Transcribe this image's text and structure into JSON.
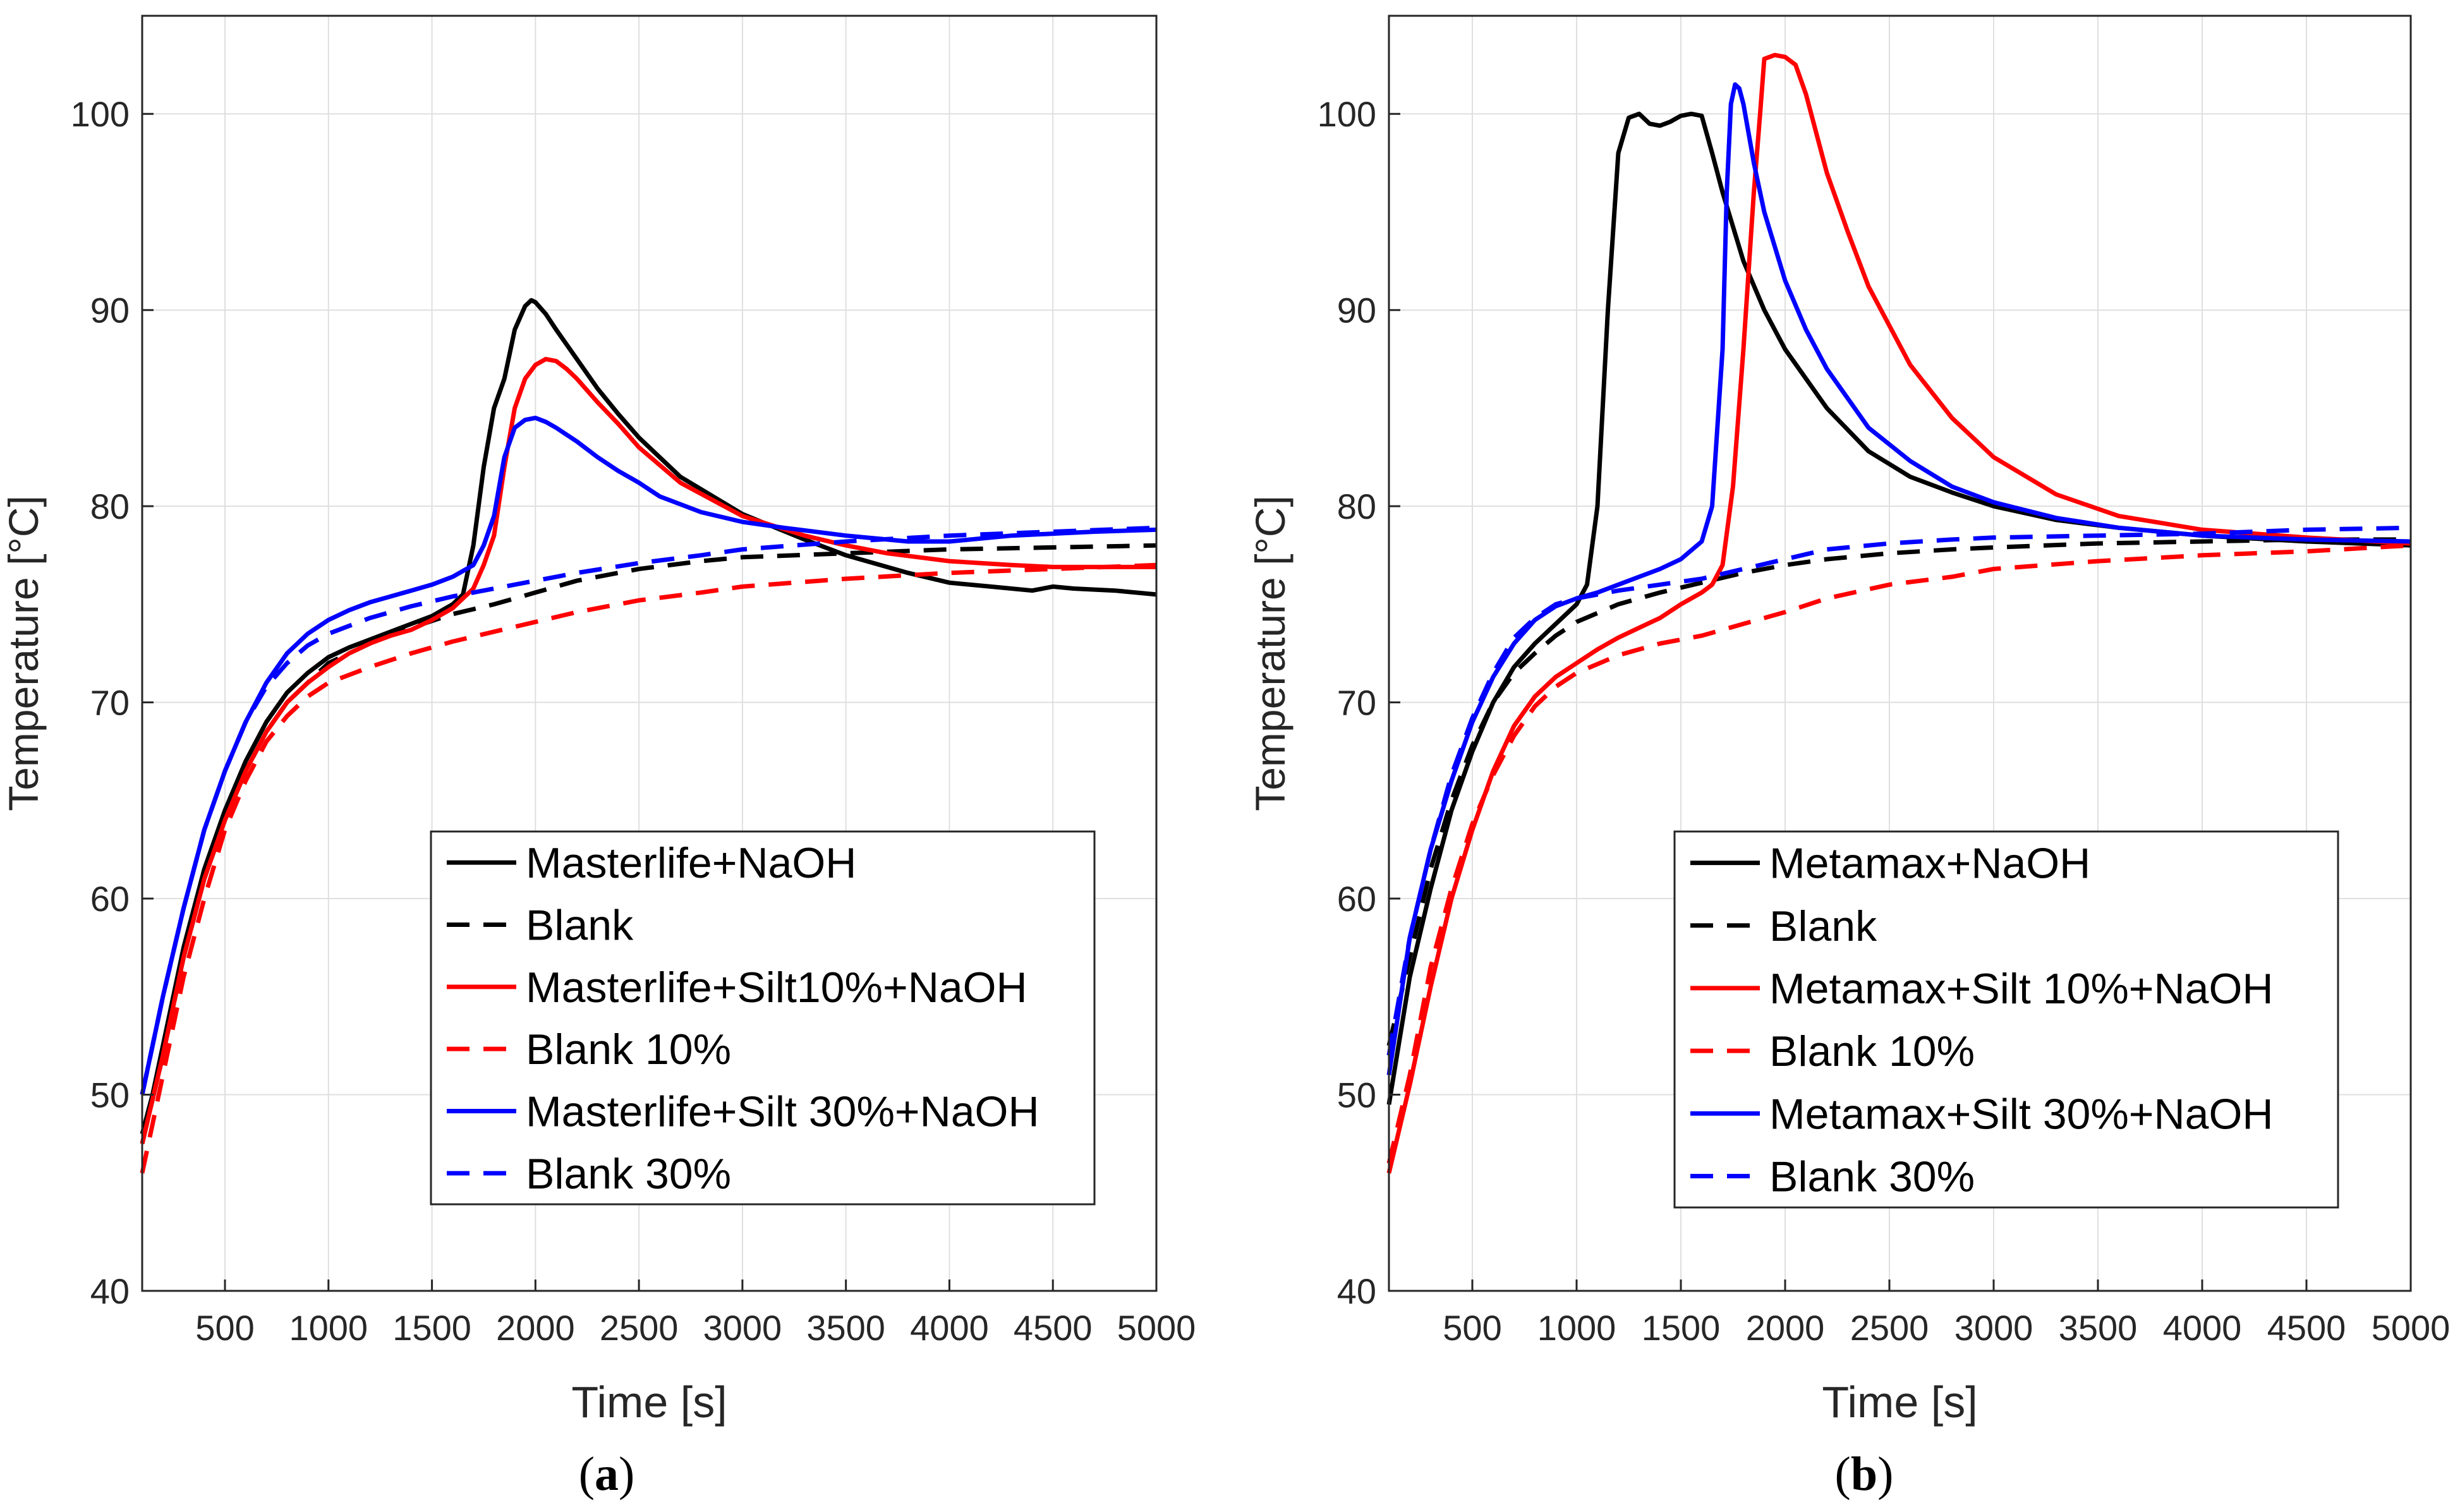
{
  "chart_data": [
    {
      "panel": "a",
      "caption_letter": "a",
      "type": "line",
      "title": "",
      "xlabel": "Time [s]",
      "ylabel": "Temperature [°C]",
      "xlim": [
        100,
        5000
      ],
      "ylim": [
        40,
        105
      ],
      "xticks": [
        500,
        1000,
        1500,
        2000,
        2500,
        3000,
        3500,
        4000,
        4500,
        5000
      ],
      "yticks": [
        40,
        50,
        60,
        70,
        80,
        90,
        100
      ],
      "grid": true,
      "legend_position": "bottom-right",
      "series": [
        {
          "name": "Masterlife+NaOH",
          "color": "#000000",
          "dash": "solid",
          "x": [
            100,
            150,
            200,
            300,
            400,
            500,
            600,
            700,
            800,
            900,
            1000,
            1100,
            1200,
            1300,
            1400,
            1500,
            1600,
            1650,
            1700,
            1750,
            1800,
            1850,
            1900,
            1950,
            1980,
            2000,
            2050,
            2100,
            2200,
            2300,
            2400,
            2500,
            2700,
            3000,
            3300,
            3500,
            3800,
            4000,
            4200,
            4400,
            4500,
            4600,
            4800,
            5000
          ],
          "y": [
            48,
            50,
            52.5,
            57.5,
            61.5,
            64.5,
            67,
            69,
            70.5,
            71.5,
            72.3,
            72.8,
            73.2,
            73.6,
            74,
            74.4,
            75,
            75.5,
            78,
            82,
            85,
            86.5,
            89,
            90.2,
            90.5,
            90.4,
            89.8,
            89,
            87.5,
            86,
            84.7,
            83.5,
            81.5,
            79.6,
            78.3,
            77.5,
            76.6,
            76.1,
            75.9,
            75.7,
            75.9,
            75.8,
            75.7,
            75.5
          ]
        },
        {
          "name": "Blank",
          "color": "#000000",
          "dash": "dashed",
          "x": [
            100,
            200,
            300,
            400,
            500,
            600,
            700,
            800,
            900,
            1000,
            1200,
            1400,
            1600,
            1800,
            2000,
            2200,
            2500,
            2800,
            3000,
            3500,
            4000,
            4500,
            5000
          ],
          "y": [
            47.5,
            52,
            57,
            61,
            64,
            66.5,
            68.5,
            70,
            71,
            72,
            73,
            73.8,
            74.5,
            75,
            75.6,
            76.2,
            76.8,
            77.2,
            77.4,
            77.6,
            77.8,
            77.9,
            78
          ]
        },
        {
          "name": "Masterlife+Silt10%+NaOH",
          "color": "#ff0000",
          "dash": "solid",
          "x": [
            100,
            200,
            300,
            400,
            500,
            600,
            700,
            800,
            900,
            1000,
            1100,
            1200,
            1300,
            1400,
            1500,
            1600,
            1700,
            1750,
            1800,
            1850,
            1900,
            1950,
            2000,
            2050,
            2100,
            2150,
            2200,
            2300,
            2400,
            2500,
            2700,
            3000,
            3300,
            3500,
            3700,
            4000,
            4300,
            4500,
            4700,
            5000
          ],
          "y": [
            47.5,
            52,
            57,
            61,
            64,
            66.5,
            68.5,
            70,
            71,
            71.8,
            72.5,
            73,
            73.4,
            73.7,
            74.2,
            74.8,
            75.8,
            77,
            78.5,
            82,
            85,
            86.5,
            87.2,
            87.5,
            87.4,
            87,
            86.5,
            85.3,
            84.2,
            83,
            81.2,
            79.5,
            78.5,
            78,
            77.6,
            77.2,
            77,
            76.9,
            76.9,
            76.9
          ]
        },
        {
          "name": "Blank 10%",
          "color": "#ff0000",
          "dash": "dashed",
          "x": [
            100,
            200,
            300,
            400,
            500,
            600,
            700,
            800,
            900,
            1000,
            1200,
            1400,
            1600,
            1800,
            2000,
            2200,
            2500,
            2800,
            3000,
            3500,
            4000,
            4500,
            5000
          ],
          "y": [
            46,
            51,
            56,
            60,
            63.5,
            66,
            68,
            69.3,
            70.3,
            71,
            71.8,
            72.5,
            73.1,
            73.6,
            74.1,
            74.6,
            75.2,
            75.6,
            75.9,
            76.3,
            76.6,
            76.8,
            77
          ]
        },
        {
          "name": "Masterlife+Silt 30%+NaOH",
          "color": "#0000ff",
          "dash": "solid",
          "x": [
            100,
            150,
            200,
            300,
            400,
            500,
            600,
            700,
            800,
            900,
            1000,
            1100,
            1200,
            1300,
            1400,
            1500,
            1600,
            1700,
            1750,
            1800,
            1850,
            1900,
            1950,
            2000,
            2050,
            2100,
            2200,
            2300,
            2400,
            2500,
            2600,
            2800,
            3000,
            3200,
            3500,
            3800,
            4000,
            4300,
            4500,
            4700,
            5000
          ],
          "y": [
            50,
            52.5,
            55,
            59.5,
            63.5,
            66.5,
            69,
            71,
            72.5,
            73.5,
            74.2,
            74.7,
            75.1,
            75.4,
            75.7,
            76,
            76.4,
            77,
            78,
            79.5,
            82.5,
            84,
            84.4,
            84.5,
            84.3,
            84,
            83.3,
            82.5,
            81.8,
            81.2,
            80.5,
            79.7,
            79.2,
            78.9,
            78.5,
            78.2,
            78.2,
            78.5,
            78.6,
            78.7,
            78.8
          ]
        },
        {
          "name": "Blank 30%",
          "color": "#0000ff",
          "dash": "dashed",
          "x": [
            100,
            200,
            300,
            400,
            500,
            600,
            700,
            800,
            900,
            1000,
            1200,
            1400,
            1600,
            1800,
            2000,
            2200,
            2500,
            2800,
            3000,
            3500,
            4000,
            4500,
            5000
          ],
          "y": [
            50,
            55,
            59.5,
            63.5,
            66.5,
            69,
            70.8,
            72,
            72.9,
            73.5,
            74.3,
            74.9,
            75.4,
            75.8,
            76.2,
            76.6,
            77.1,
            77.5,
            77.8,
            78.2,
            78.5,
            78.7,
            78.9
          ]
        }
      ]
    },
    {
      "panel": "b",
      "caption_letter": "b",
      "type": "line",
      "title": "",
      "xlabel": "Time [s]",
      "ylabel": "Temperature [°C]",
      "xlim": [
        100,
        5000
      ],
      "ylim": [
        40,
        105
      ],
      "xticks": [
        500,
        1000,
        1500,
        2000,
        2500,
        3000,
        3500,
        4000,
        4500,
        5000
      ],
      "yticks": [
        40,
        50,
        60,
        70,
        80,
        90,
        100
      ],
      "grid": true,
      "legend_position": "bottom-right",
      "series": [
        {
          "name": "Metamax+NaOH",
          "color": "#000000",
          "dash": "solid",
          "x": [
            100,
            200,
            300,
            400,
            500,
            600,
            700,
            800,
            900,
            1000,
            1050,
            1100,
            1150,
            1200,
            1250,
            1300,
            1350,
            1400,
            1450,
            1500,
            1550,
            1600,
            1650,
            1700,
            1800,
            1900,
            2000,
            2200,
            2400,
            2600,
            2800,
            3000,
            3300,
            3600,
            4000,
            4500,
            5000
          ],
          "y": [
            49.5,
            56,
            60.5,
            64.5,
            67.5,
            70,
            71.8,
            73,
            74,
            75,
            76,
            80,
            90,
            98,
            99.8,
            100,
            99.5,
            99.4,
            99.6,
            99.9,
            100,
            99.9,
            98,
            96,
            92.5,
            90,
            88,
            85,
            82.8,
            81.5,
            80.7,
            80,
            79.3,
            78.9,
            78.5,
            78.2,
            78
          ]
        },
        {
          "name": "Blank",
          "color": "#000000",
          "dash": "dashed",
          "x": [
            100,
            200,
            300,
            400,
            500,
            600,
            700,
            800,
            900,
            1000,
            1200,
            1400,
            1600,
            1800,
            2000,
            2200,
            2500,
            2800,
            3000,
            3500,
            4000,
            4500,
            5000
          ],
          "y": [
            52.5,
            57,
            61.5,
            65,
            67.8,
            70,
            71.5,
            72.5,
            73.4,
            74.1,
            75,
            75.6,
            76.1,
            76.6,
            77,
            77.3,
            77.6,
            77.8,
            77.9,
            78.1,
            78.2,
            78.3,
            78.3
          ]
        },
        {
          "name": "Metamax+Silt 10%+NaOH",
          "color": "#ff0000",
          "dash": "solid",
          "x": [
            100,
            200,
            300,
            400,
            500,
            600,
            700,
            800,
            900,
            1000,
            1100,
            1200,
            1300,
            1400,
            1500,
            1600,
            1650,
            1700,
            1750,
            1800,
            1850,
            1880,
            1900,
            1950,
            2000,
            2050,
            2100,
            2200,
            2300,
            2400,
            2600,
            2800,
            3000,
            3300,
            3600,
            4000,
            4500,
            5000
          ],
          "y": [
            46,
            50.5,
            55.5,
            60,
            63.5,
            66.5,
            68.8,
            70.3,
            71.3,
            72,
            72.7,
            73.3,
            73.8,
            74.3,
            75,
            75.6,
            76,
            77,
            81,
            88,
            96,
            100,
            102.8,
            103,
            102.9,
            102.5,
            101,
            97,
            94,
            91.2,
            87.2,
            84.5,
            82.5,
            80.6,
            79.5,
            78.8,
            78.4,
            78.1
          ]
        },
        {
          "name": "Blank 10%",
          "color": "#ff0000",
          "dash": "dashed",
          "x": [
            100,
            200,
            300,
            400,
            500,
            600,
            700,
            800,
            900,
            1000,
            1200,
            1400,
            1600,
            1800,
            2000,
            2200,
            2500,
            2800,
            3000,
            3500,
            4000,
            4500,
            5000
          ],
          "y": [
            46.5,
            51,
            56.5,
            60.5,
            63.8,
            66.3,
            68.3,
            69.8,
            70.8,
            71.5,
            72.4,
            73,
            73.4,
            74,
            74.6,
            75.3,
            76,
            76.4,
            76.8,
            77.2,
            77.5,
            77.7,
            78
          ]
        },
        {
          "name": "Metamax+Silt 30%+NaOH",
          "color": "#0000ff",
          "dash": "solid",
          "x": [
            100,
            200,
            300,
            400,
            500,
            600,
            700,
            800,
            900,
            1000,
            1100,
            1200,
            1300,
            1400,
            1500,
            1600,
            1650,
            1700,
            1720,
            1740,
            1760,
            1780,
            1800,
            1850,
            1900,
            2000,
            2100,
            2200,
            2400,
            2600,
            2800,
            3000,
            3300,
            3600,
            4000,
            4500,
            5000
          ],
          "y": [
            51,
            58,
            62.5,
            66,
            69,
            71.3,
            73,
            74.2,
            74.9,
            75.3,
            75.6,
            76,
            76.4,
            76.8,
            77.3,
            78.2,
            80,
            88,
            96,
            100.5,
            101.5,
            101.3,
            100.5,
            97.5,
            95,
            91.5,
            89,
            87,
            84,
            82.3,
            81,
            80.2,
            79.4,
            78.9,
            78.5,
            78.3,
            78.2
          ]
        },
        {
          "name": "Blank 30%",
          "color": "#0000ff",
          "dash": "dashed",
          "x": [
            100,
            200,
            300,
            400,
            500,
            600,
            700,
            800,
            900,
            1000,
            1200,
            1400,
            1600,
            1800,
            2000,
            2200,
            2500,
            2800,
            3000,
            3500,
            4000,
            4500,
            5000
          ],
          "y": [
            52,
            58,
            62.5,
            66.3,
            69.2,
            71.5,
            73.3,
            74.3,
            75,
            75.3,
            75.7,
            76,
            76.3,
            76.8,
            77.3,
            77.8,
            78.1,
            78.3,
            78.4,
            78.5,
            78.6,
            78.8,
            78.9
          ]
        }
      ]
    }
  ]
}
